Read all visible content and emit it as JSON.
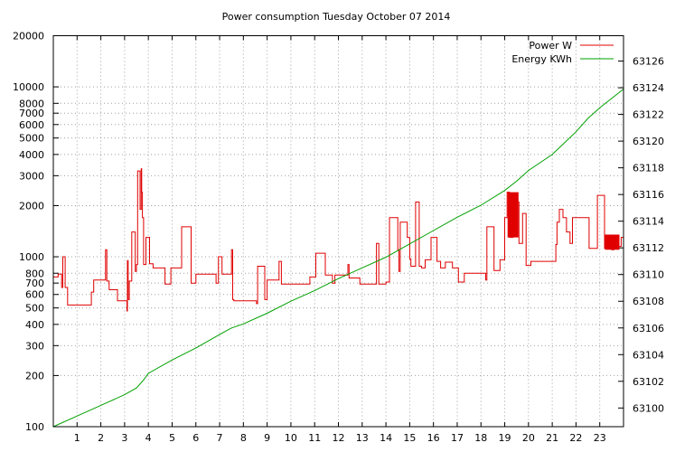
{
  "chart_data": {
    "type": "line",
    "title": "Power consumption Tuesday October 07 2014",
    "xlabel": "",
    "ylabel": "",
    "grid": true,
    "legend_position": "top-right",
    "x_range": [
      0,
      24
    ],
    "x_ticks": [
      1,
      2,
      3,
      4,
      5,
      6,
      7,
      8,
      9,
      10,
      11,
      12,
      13,
      14,
      15,
      16,
      17,
      18,
      19,
      20,
      21,
      22,
      23
    ],
    "y_axis": {
      "scale": "log",
      "range": [
        100,
        20000
      ],
      "ticks": [
        100,
        200,
        300,
        400,
        500,
        600,
        700,
        800,
        1000,
        2000,
        3000,
        4000,
        5000,
        6000,
        7000,
        8000,
        10000,
        20000
      ]
    },
    "y2_axis": {
      "scale": "linear",
      "range": [
        63098.6,
        63127.9
      ],
      "ticks": [
        63100,
        63102,
        63104,
        63106,
        63108,
        63110,
        63112,
        63114,
        63116,
        63118,
        63120,
        63122,
        63124,
        63126
      ]
    },
    "series": [
      {
        "name": "Power W",
        "color": "#e00000",
        "axis": "y",
        "step": true,
        "x": [
          0.0,
          0.2,
          0.35,
          0.4,
          0.5,
          0.6,
          1.55,
          1.6,
          1.7,
          2.2,
          2.25,
          2.3,
          2.35,
          2.65,
          2.7,
          3.05,
          3.1,
          3.12,
          3.15,
          3.2,
          3.3,
          3.45,
          3.5,
          3.55,
          3.65,
          3.7,
          3.72,
          3.75,
          3.8,
          3.9,
          4.05,
          4.2,
          4.7,
          4.95,
          5.25,
          5.4,
          5.8,
          5.95,
          6.0,
          6.85,
          6.95,
          7.1,
          7.5,
          7.55,
          7.6,
          7.65,
          8.55,
          8.6,
          8.9,
          9.0,
          9.15,
          9.5,
          9.6,
          10.5,
          10.8,
          10.95,
          11.05,
          11.45,
          11.75,
          11.85,
          12.25,
          12.4,
          12.45,
          12.9,
          13.45,
          13.6,
          13.7,
          13.8,
          14.0,
          14.15,
          14.5,
          14.55,
          14.6,
          14.9,
          15.0,
          15.05,
          15.25,
          15.4,
          15.5,
          15.65,
          15.9,
          16.15,
          16.3,
          16.5,
          16.8,
          17.05,
          17.3,
          18.0,
          18.2,
          18.25,
          18.55,
          18.8,
          19.0,
          19.1,
          19.2,
          19.35,
          19.5,
          19.6,
          19.75,
          19.9,
          20.1,
          21.0,
          21.15,
          21.2,
          21.3,
          21.45,
          21.6,
          21.75,
          21.85,
          22.05,
          22.2,
          22.45,
          22.55,
          22.9,
          23.2,
          23.3,
          23.35,
          23.5,
          23.6,
          23.9,
          24.0
        ],
        "y": [
          760,
          790,
          660,
          1000,
          660,
          520,
          520,
          620,
          730,
          1100,
          720,
          720,
          640,
          640,
          550,
          550,
          480,
          950,
          560,
          720,
          1400,
          820,
          900,
          3200,
          1900,
          3300,
          2400,
          1700,
          900,
          1300,
          910,
          860,
          690,
          860,
          860,
          1500,
          700,
          700,
          790,
          700,
          1000,
          790,
          1100,
          560,
          550,
          550,
          530,
          880,
          560,
          730,
          730,
          940,
          690,
          690,
          760,
          760,
          1050,
          780,
          700,
          780,
          780,
          900,
          750,
          690,
          690,
          1200,
          690,
          690,
          710,
          1700,
          1100,
          820,
          1600,
          1300,
          970,
          880,
          2100,
          880,
          860,
          960,
          1300,
          940,
          860,
          930,
          860,
          710,
          800,
          800,
          730,
          1500,
          830,
          960,
          1700,
          2400,
          1300,
          2300,
          2100,
          1200,
          1800,
          890,
          940,
          940,
          1180,
          1600,
          1900,
          1700,
          1400,
          1200,
          1700,
          1700,
          1700,
          1700,
          1120,
          2300,
          1120,
          1200,
          1200,
          1100,
          1150,
          1300,
          1300
        ],
        "y_spike_ranges": [
          [
            19.15,
            19.55,
            1300,
            2400
          ],
          [
            23.25,
            23.8,
            1100,
            1350
          ]
        ]
      },
      {
        "name": "Energy KWh",
        "color": "#00a000",
        "axis": "y2",
        "step": false,
        "x": [
          0.0,
          1.0,
          2.0,
          3.0,
          3.5,
          3.8,
          4.0,
          5.0,
          6.0,
          7.0,
          7.5,
          8.0,
          9.0,
          10.0,
          11.0,
          12.0,
          13.0,
          14.0,
          15.0,
          16.0,
          17.0,
          18.0,
          19.0,
          19.5,
          20.0,
          21.0,
          22.0,
          22.5,
          23.0,
          24.0
        ],
        "y": [
          63098.6,
          63099.4,
          63100.2,
          63101.0,
          63101.5,
          63102.1,
          63102.6,
          63103.6,
          63104.5,
          63105.5,
          63106.0,
          63106.3,
          63107.1,
          63108.0,
          63108.8,
          63109.7,
          63110.5,
          63111.3,
          63112.3,
          63113.3,
          63114.3,
          63115.2,
          63116.3,
          63117.0,
          63117.8,
          63119.0,
          63120.7,
          63121.7,
          63122.5,
          63123.9
        ]
      }
    ]
  }
}
